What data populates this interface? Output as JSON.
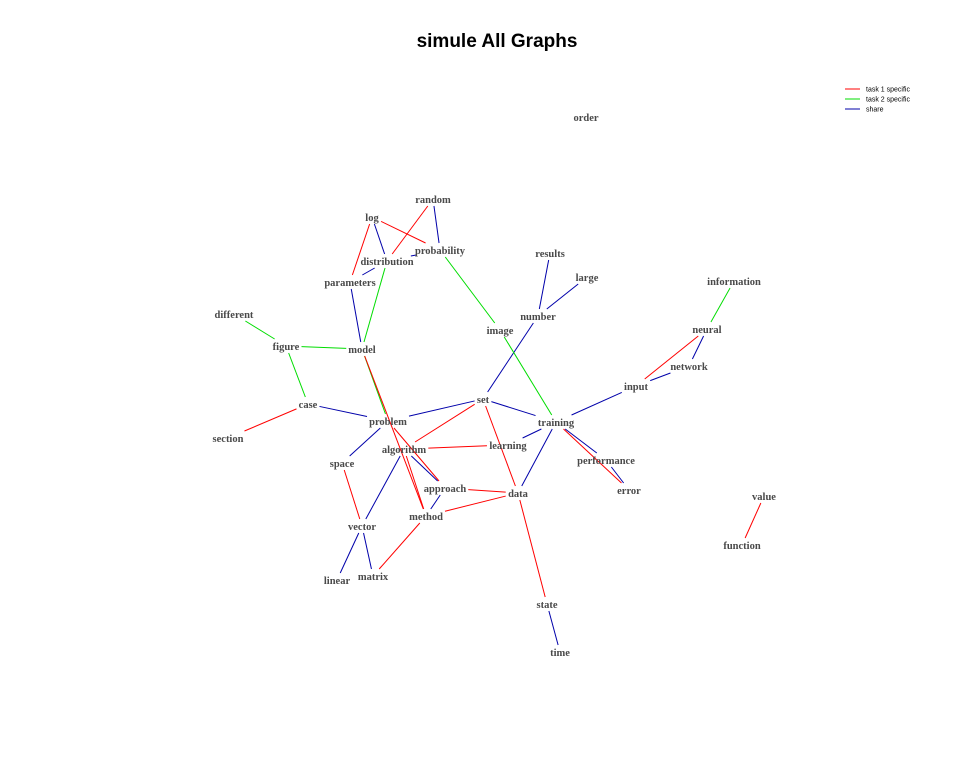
{
  "title": "simule All Graphs",
  "colors": {
    "task1": "#ff0000",
    "task2": "#00dd00",
    "share": "#0000aa",
    "label": "#4a4a4a"
  },
  "legend": [
    {
      "label": "task 1 specific",
      "key": "task1"
    },
    {
      "label": "task 2 specific",
      "key": "task2"
    },
    {
      "label": "share",
      "key": "share"
    }
  ],
  "nodes": [
    {
      "id": "order",
      "label": "order"
    },
    {
      "id": "random",
      "label": "random"
    },
    {
      "id": "log",
      "label": "log"
    },
    {
      "id": "probability",
      "label": "probability"
    },
    {
      "id": "distribution",
      "label": "distribution"
    },
    {
      "id": "parameters",
      "label": "parameters"
    },
    {
      "id": "results",
      "label": "results"
    },
    {
      "id": "large",
      "label": "large"
    },
    {
      "id": "information",
      "label": "information"
    },
    {
      "id": "different",
      "label": "different"
    },
    {
      "id": "number",
      "label": "number"
    },
    {
      "id": "image",
      "label": "image"
    },
    {
      "id": "neural",
      "label": "neural"
    },
    {
      "id": "figure",
      "label": "figure"
    },
    {
      "id": "model",
      "label": "model"
    },
    {
      "id": "network",
      "label": "network"
    },
    {
      "id": "input",
      "label": "input"
    },
    {
      "id": "set",
      "label": "set"
    },
    {
      "id": "case",
      "label": "case"
    },
    {
      "id": "problem",
      "label": "problem"
    },
    {
      "id": "training",
      "label": "training"
    },
    {
      "id": "section",
      "label": "section"
    },
    {
      "id": "learning",
      "label": "learning"
    },
    {
      "id": "algorithm",
      "label": "algorithm"
    },
    {
      "id": "space",
      "label": "space"
    },
    {
      "id": "performance",
      "label": "performance"
    },
    {
      "id": "approach",
      "label": "approach"
    },
    {
      "id": "error",
      "label": "error"
    },
    {
      "id": "data",
      "label": "data"
    },
    {
      "id": "value",
      "label": "value"
    },
    {
      "id": "method",
      "label": "method"
    },
    {
      "id": "vector",
      "label": "vector"
    },
    {
      "id": "function",
      "label": "function"
    },
    {
      "id": "matrix",
      "label": "matrix"
    },
    {
      "id": "linear",
      "label": "linear"
    },
    {
      "id": "state",
      "label": "state"
    },
    {
      "id": "time",
      "label": "time"
    }
  ],
  "edges": [
    {
      "from": "random",
      "to": "probability",
      "type": "share"
    },
    {
      "from": "random",
      "to": "distribution",
      "type": "task1"
    },
    {
      "from": "log",
      "to": "probability",
      "type": "task1"
    },
    {
      "from": "log",
      "to": "distribution",
      "type": "share"
    },
    {
      "from": "log",
      "to": "parameters",
      "type": "task1"
    },
    {
      "from": "probability",
      "to": "distribution",
      "type": "share"
    },
    {
      "from": "probability",
      "to": "image",
      "type": "task2"
    },
    {
      "from": "distribution",
      "to": "parameters",
      "type": "share"
    },
    {
      "from": "distribution",
      "to": "model",
      "type": "task2"
    },
    {
      "from": "parameters",
      "to": "model",
      "type": "share"
    },
    {
      "from": "results",
      "to": "number",
      "type": "share"
    },
    {
      "from": "large",
      "to": "number",
      "type": "share"
    },
    {
      "from": "number",
      "to": "set",
      "type": "share"
    },
    {
      "from": "image",
      "to": "training",
      "type": "task2"
    },
    {
      "from": "information",
      "to": "neural",
      "type": "task2"
    },
    {
      "from": "neural",
      "to": "network",
      "type": "share"
    },
    {
      "from": "neural",
      "to": "input",
      "type": "task1"
    },
    {
      "from": "network",
      "to": "input",
      "type": "share"
    },
    {
      "from": "input",
      "to": "training",
      "type": "share"
    },
    {
      "from": "different",
      "to": "figure",
      "type": "task2"
    },
    {
      "from": "figure",
      "to": "model",
      "type": "task2"
    },
    {
      "from": "figure",
      "to": "case",
      "type": "task2"
    },
    {
      "from": "model",
      "to": "problem",
      "type": "task2"
    },
    {
      "from": "model",
      "to": "method",
      "type": "task1"
    },
    {
      "from": "case",
      "to": "problem",
      "type": "share"
    },
    {
      "from": "case",
      "to": "section",
      "type": "task1"
    },
    {
      "from": "set",
      "to": "problem",
      "type": "share"
    },
    {
      "from": "set",
      "to": "training",
      "type": "share"
    },
    {
      "from": "set",
      "to": "algorithm",
      "type": "task1"
    },
    {
      "from": "set",
      "to": "data",
      "type": "task1"
    },
    {
      "from": "training",
      "to": "learning",
      "type": "share"
    },
    {
      "from": "training",
      "to": "performance",
      "type": "share"
    },
    {
      "from": "training",
      "to": "error",
      "type": "task1"
    },
    {
      "from": "training",
      "to": "data",
      "type": "share"
    },
    {
      "from": "performance",
      "to": "error",
      "type": "share"
    },
    {
      "from": "problem",
      "to": "space",
      "type": "share"
    },
    {
      "from": "problem",
      "to": "approach",
      "type": "task1"
    },
    {
      "from": "algorithm",
      "to": "learning",
      "type": "task1"
    },
    {
      "from": "algorithm",
      "to": "vector",
      "type": "share"
    },
    {
      "from": "algorithm",
      "to": "approach",
      "type": "share"
    },
    {
      "from": "algorithm",
      "to": "method",
      "type": "task1"
    },
    {
      "from": "approach",
      "to": "data",
      "type": "task1"
    },
    {
      "from": "approach",
      "to": "method",
      "type": "share"
    },
    {
      "from": "method",
      "to": "data",
      "type": "task1"
    },
    {
      "from": "method",
      "to": "matrix",
      "type": "task1"
    },
    {
      "from": "space",
      "to": "vector",
      "type": "task1"
    },
    {
      "from": "vector",
      "to": "linear",
      "type": "share"
    },
    {
      "from": "vector",
      "to": "matrix",
      "type": "share"
    },
    {
      "from": "data",
      "to": "state",
      "type": "task1"
    },
    {
      "from": "state",
      "to": "time",
      "type": "share"
    },
    {
      "from": "value",
      "to": "function",
      "type": "task1"
    }
  ]
}
